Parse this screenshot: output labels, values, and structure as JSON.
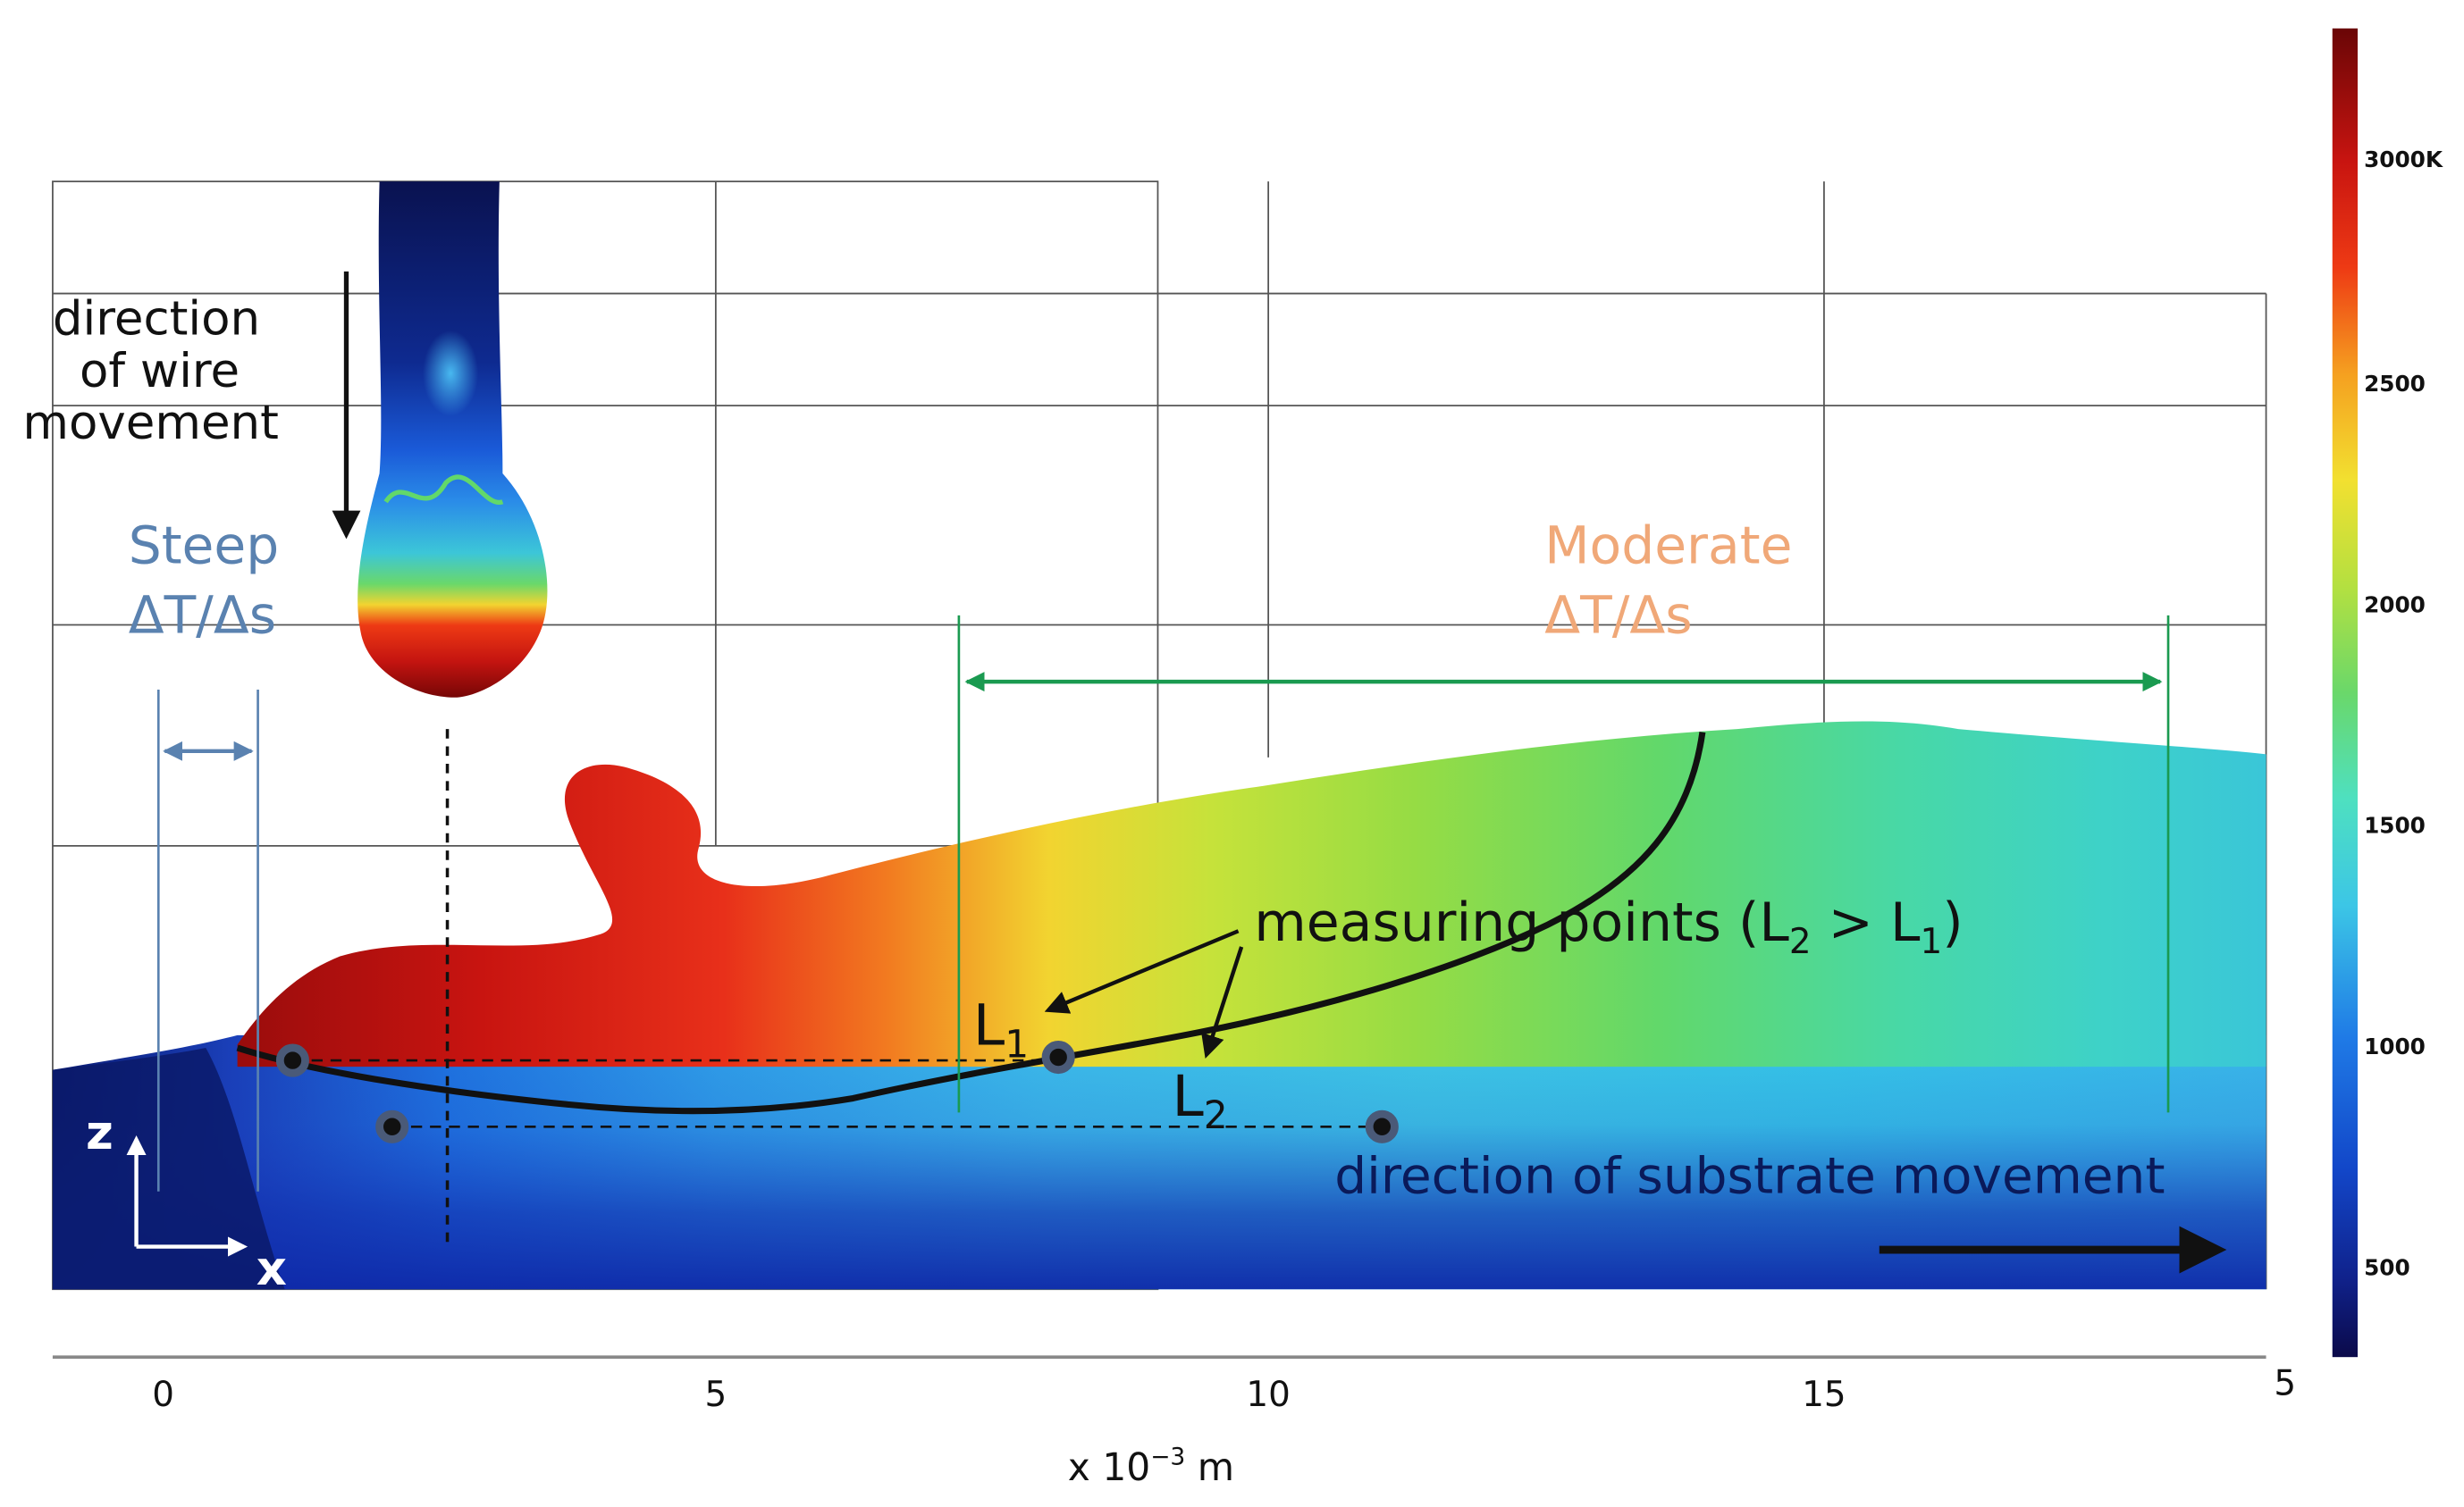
{
  "annotations": {
    "wire_direction": [
      "direction",
      "of wire",
      "movement"
    ],
    "steep_gradient": [
      "Steep",
      "ΔT/Δs"
    ],
    "moderate_gradient": [
      "Moderate",
      "ΔT/Δs"
    ],
    "measuring_points": "measuring points (L",
    "measuring_points_sub2": "2",
    "measuring_points_mid": " > L",
    "measuring_points_sub1": "1",
    "measuring_points_end": ")",
    "l1_label": "L",
    "l1_sub": "1",
    "l2_label": "L",
    "l2_sub": "2",
    "substrate_direction": "direction of substrate movement",
    "axis_z": "z",
    "axis_x": "x"
  },
  "x_axis": {
    "ticks": [
      "0",
      "5",
      "10",
      "15",
      "5"
    ],
    "unit_base": "x 10",
    "unit_exp": "−3",
    "unit_suffix": " m"
  },
  "colorbar": {
    "labels": [
      "3000K",
      "2500",
      "2000",
      "1500",
      "1000",
      "500"
    ],
    "stops": [
      "#0b0a4a",
      "#10228c",
      "#1246c8",
      "#1f7ae6",
      "#3cc6e6",
      "#4ee0c0",
      "#6ad86a",
      "#b4e040",
      "#f2e030",
      "#f5a020",
      "#ee3a14",
      "#c81410",
      "#7a0808"
    ]
  },
  "colors": {
    "steep_blue": "#5a82b0",
    "moderate_orange": "#f0a878",
    "green_arrow": "#1a9a50",
    "dark_text": "#111111"
  }
}
